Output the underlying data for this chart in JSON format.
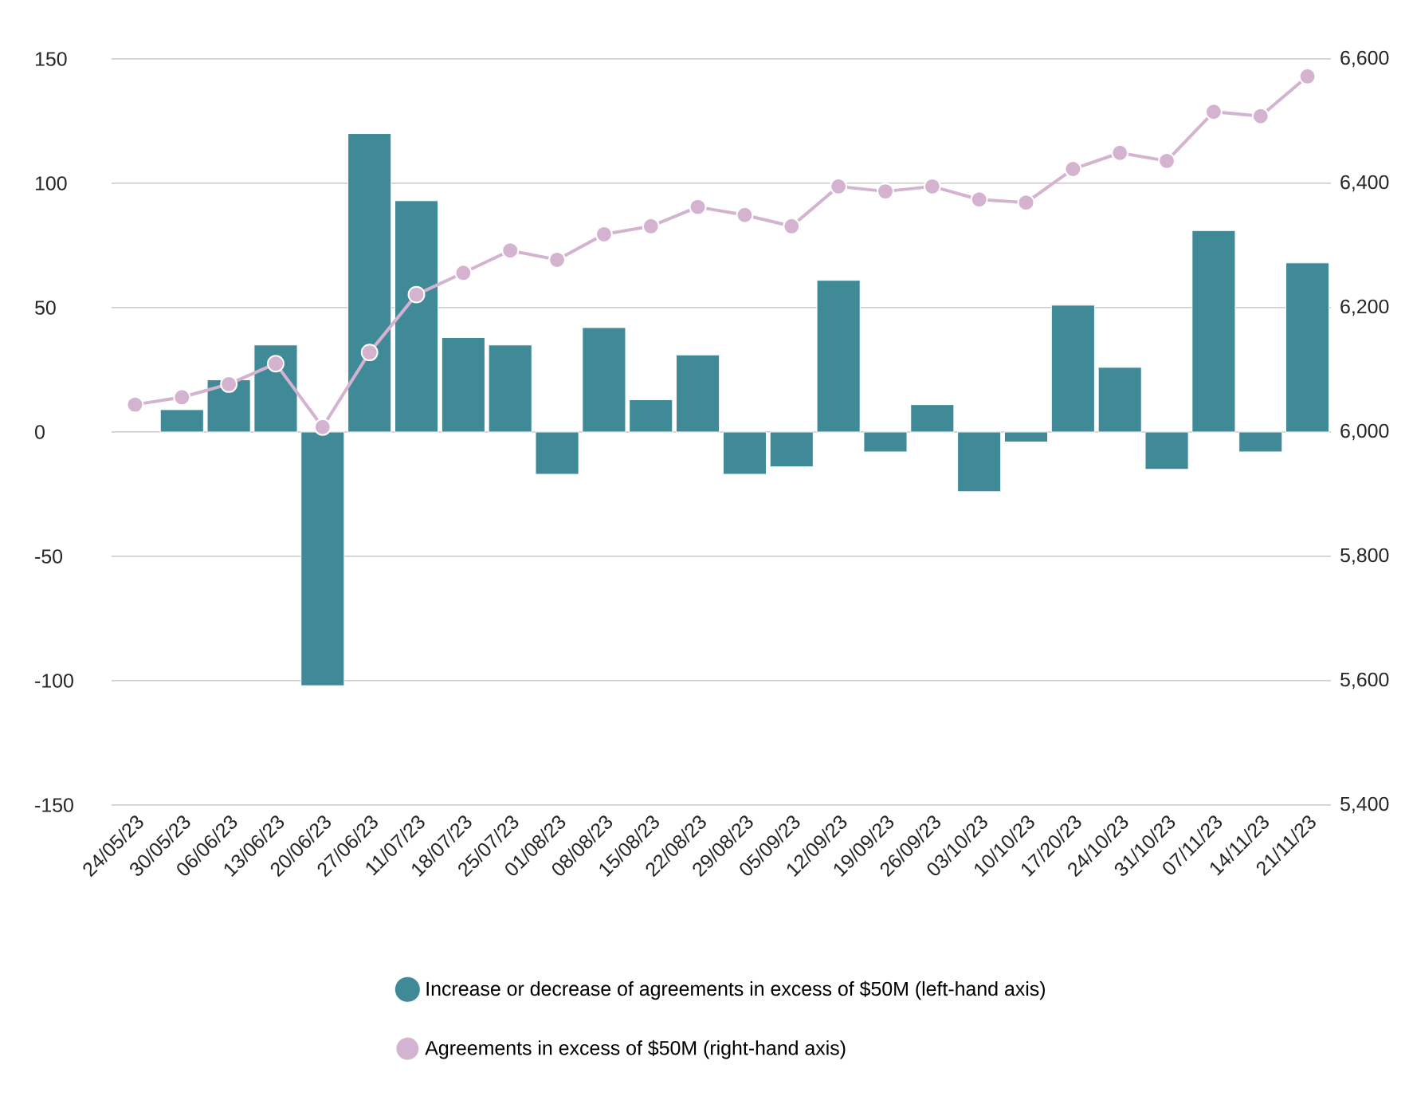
{
  "chart_data": {
    "type": "bar",
    "categories": [
      "24/05/23",
      "30/05/23",
      "06/06/23",
      "13/06/23",
      "20/06/23",
      "27/06/23",
      "11/07/23",
      "18/07/23",
      "25/07/23",
      "01/08/23",
      "08/08/23",
      "15/08/23",
      "22/08/23",
      "29/08/23",
      "05/09/23",
      "12/09/23",
      "19/09/23",
      "26/09/23",
      "03/10/23",
      "10/10/23",
      "17/20/23",
      "24/10/23",
      "31/10/23",
      "07/11/23",
      "14/11/23",
      "21/11/23"
    ],
    "series": [
      {
        "name": "Increase or decrease of agreements in excess of $50M (left-hand axis)",
        "color": "#3f8a96",
        "values": [
          null,
          9,
          21,
          35,
          -102,
          120,
          93,
          38,
          35,
          -17,
          42,
          13,
          31,
          -17,
          -14,
          61,
          -8,
          11,
          -24,
          -4,
          51,
          26,
          -15,
          81,
          -8,
          68
        ]
      },
      {
        "name": "Agreements in excess of $50M (right-hand axis)",
        "type": "line",
        "axis": "y2",
        "color": "#d4b3d0",
        "values": [
          6044,
          6056,
          6077,
          6110,
          6008,
          6128,
          6221,
          6256,
          6292,
          6277,
          6318,
          6331,
          6362,
          6349,
          6331,
          6395,
          6387,
          6395,
          6374,
          6369,
          6423,
          6449,
          6436,
          6515,
          6508,
          6572
        ]
      }
    ],
    "ylim": [
      -150,
      150
    ],
    "yticks": [
      -150,
      -100,
      -50,
      0,
      50,
      100,
      150
    ],
    "y2lim": [
      5400,
      6600
    ],
    "y2ticks": [
      {
        "value": 5400,
        "label": "5,400"
      },
      {
        "value": 5600,
        "label": "5,600"
      },
      {
        "value": 5800,
        "label": "5,800"
      },
      {
        "value": 6000,
        "label": "6,000"
      },
      {
        "value": 6200,
        "label": "6,200"
      },
      {
        "value": 6400,
        "label": "6,400"
      },
      {
        "value": 6600,
        "label": "6,600"
      }
    ],
    "grid": "y",
    "legend": "bottom",
    "marker": "circle",
    "line_style": "solid"
  }
}
